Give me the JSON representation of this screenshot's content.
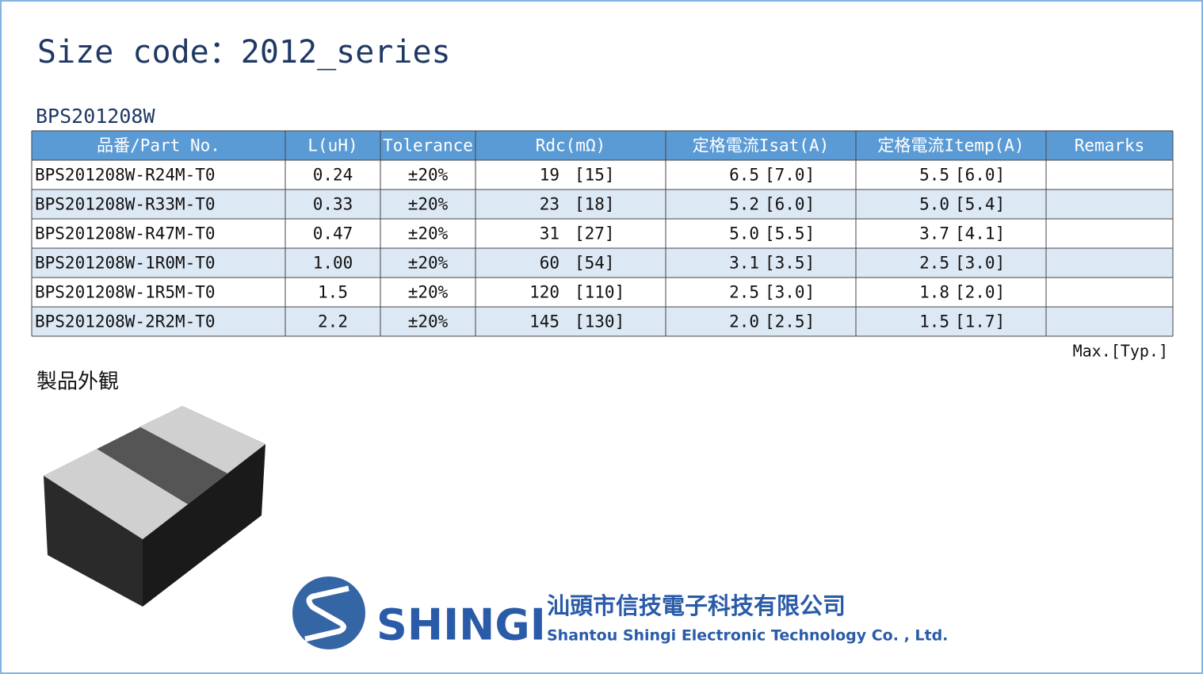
{
  "title": "Size code：2012_series",
  "subtitle": "BPS201208W",
  "table": {
    "headers": [
      "品番/Part No.",
      "L(uH)",
      "Tolerance",
      "Rdc(mΩ)",
      "定格電流Isat(A)",
      "定格電流Itemp(A)",
      "Remarks"
    ],
    "rows": [
      [
        "BPS201208W-R24M-T0",
        "0.24",
        "±20%",
        "19",
        "[15]",
        "6.5",
        "[7.0]",
        "5.5",
        "[6.0]"
      ],
      [
        "BPS201208W-R33M-T0",
        "0.33",
        "±20%",
        "23",
        "[18]",
        "5.2",
        "[6.0]",
        "5.0",
        "[5.4]"
      ],
      [
        "BPS201208W-R47M-T0",
        "0.47",
        "±20%",
        "31",
        "[27]",
        "5.0",
        "[5.5]",
        "3.7",
        "[4.1]"
      ],
      [
        "BPS201208W-1R0M-T0",
        "1.00",
        "±20%",
        "60",
        "[54]",
        "3.1",
        "[3.5]",
        "2.5",
        "[3.0]"
      ],
      [
        "BPS201208W-1R5M-T0",
        "1.5",
        "±20%",
        "120",
        "[110]",
        "2.5",
        "[3.0]",
        "1.8",
        "[2.0]"
      ],
      [
        "BPS201208W-2R2M-T0",
        "2.2",
        "±20%",
        "145",
        "[130]",
        "2.0",
        "[2.5]",
        "1.5",
        "[1.7]"
      ]
    ],
    "note": "Max.[Typ.]"
  },
  "section": "製品外観",
  "logo": {
    "brand": "SHINGI",
    "company_cn": "汕頭市信技電子科技有限公司",
    "company_en": "Shantou Shingi Electronic Technology Co. , Ltd."
  }
}
